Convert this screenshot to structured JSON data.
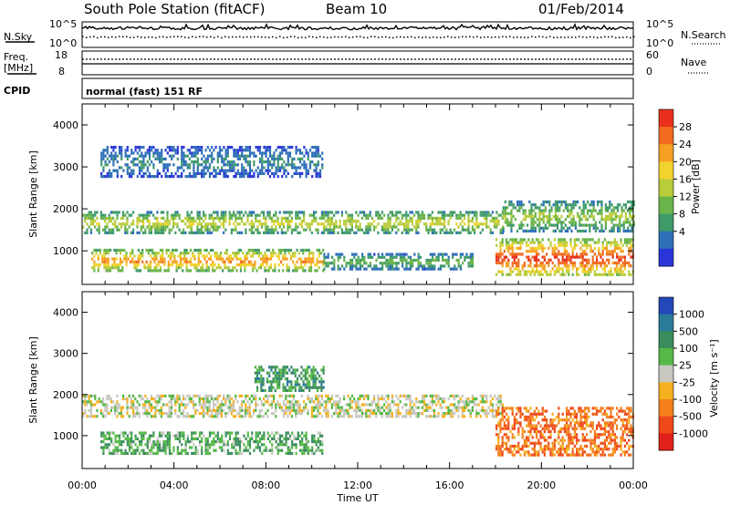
{
  "header": {
    "station": "South Pole Station (fitACF)",
    "beam": "Beam 10",
    "date": "01/Feb/2014"
  },
  "top_panels": {
    "nsky_label": "N.Sky",
    "nsearch_label": "N.Search",
    "nsky_ticks": [
      "10^5",
      "10^0"
    ],
    "nsearch_ticks": [
      "10^5",
      "10^0"
    ],
    "freq_label_1": "Freq.",
    "freq_label_2": "[MHz]",
    "freq_ticks": [
      "18",
      "8"
    ],
    "nave_label": "Nave",
    "nave_ticks": [
      "60",
      "0"
    ],
    "cpid_label": "CPID",
    "cpid_value": "normal (fast) 151 RF"
  },
  "power_panel": {
    "ylabel": "Slant Range [km]",
    "yticks": [
      "4000",
      "3000",
      "2000",
      "1000"
    ],
    "colorbar_label": "Power [dB]",
    "colorbar_ticks": [
      "28",
      "24",
      "20",
      "16",
      "12",
      "8",
      "4"
    ],
    "colors": [
      "#2a35d8",
      "#2d6fb8",
      "#3f9a6a",
      "#6ab44a",
      "#b9cc3a",
      "#f2d22c",
      "#f5a023",
      "#f26a1f",
      "#e8301c"
    ]
  },
  "velocity_panel": {
    "ylabel": "Slant Range [km]",
    "yticks": [
      "4000",
      "3000",
      "2000",
      "1000"
    ],
    "colorbar_label": "Velocity [m s⁻¹]",
    "colorbar_ticks": [
      "1000",
      "500",
      "100",
      "25",
      "-25",
      "-100",
      "-500",
      "-1000"
    ],
    "colors": [
      "#2448b8",
      "#2a7a9a",
      "#3a8c5c",
      "#55b847",
      "#c8c8c0",
      "#f5b020",
      "#f5801e",
      "#f04a1c",
      "#e0201a"
    ]
  },
  "x_axis": {
    "ticks": [
      "00:00",
      "04:00",
      "08:00",
      "12:00",
      "16:00",
      "20:00",
      "00:00"
    ],
    "label": "Time UT"
  },
  "chart_data": {
    "type": "heatmap",
    "title": "South Pole Station (fitACF)",
    "subtitle": "Beam 10  01/Feb/2014",
    "xlabel": "Time UT",
    "ylabel": "Slant Range [km]",
    "xlim": [
      0,
      24
    ],
    "ylim": [
      200,
      4500
    ],
    "panels": [
      {
        "name": "Power [dB]",
        "color_range": [
          0,
          30
        ],
        "bands": [
          {
            "t0": 0.0,
            "t1": 18.3,
            "r0": 1450,
            "r1": 1950,
            "value": 14
          },
          {
            "t0": 18.3,
            "t1": 24.0,
            "r0": 1500,
            "r1": 2200,
            "value": 12
          },
          {
            "t0": 0.4,
            "t1": 10.5,
            "r0": 550,
            "r1": 1050,
            "value": 20
          },
          {
            "t0": 10.5,
            "t1": 17.0,
            "r0": 600,
            "r1": 950,
            "value": 10
          },
          {
            "t0": 18.0,
            "t1": 24.0,
            "r0": 400,
            "r1": 1300,
            "value": 24
          },
          {
            "t0": 0.8,
            "t1": 10.5,
            "r0": 2800,
            "r1": 3500,
            "value": 6
          }
        ]
      },
      {
        "name": "Velocity [m s-1]",
        "color_range": [
          -1000,
          1000
        ],
        "bands": [
          {
            "t0": 0.0,
            "t1": 18.3,
            "r0": 1450,
            "r1": 2000,
            "value": 0
          },
          {
            "t0": 0.8,
            "t1": 10.5,
            "r0": 550,
            "r1": 1100,
            "value": 300
          },
          {
            "t0": 18.0,
            "t1": 24.0,
            "r0": 500,
            "r1": 1700,
            "value": -500
          },
          {
            "t0": 7.5,
            "t1": 10.5,
            "r0": 2100,
            "r1": 2700,
            "value": 400
          }
        ]
      }
    ]
  }
}
